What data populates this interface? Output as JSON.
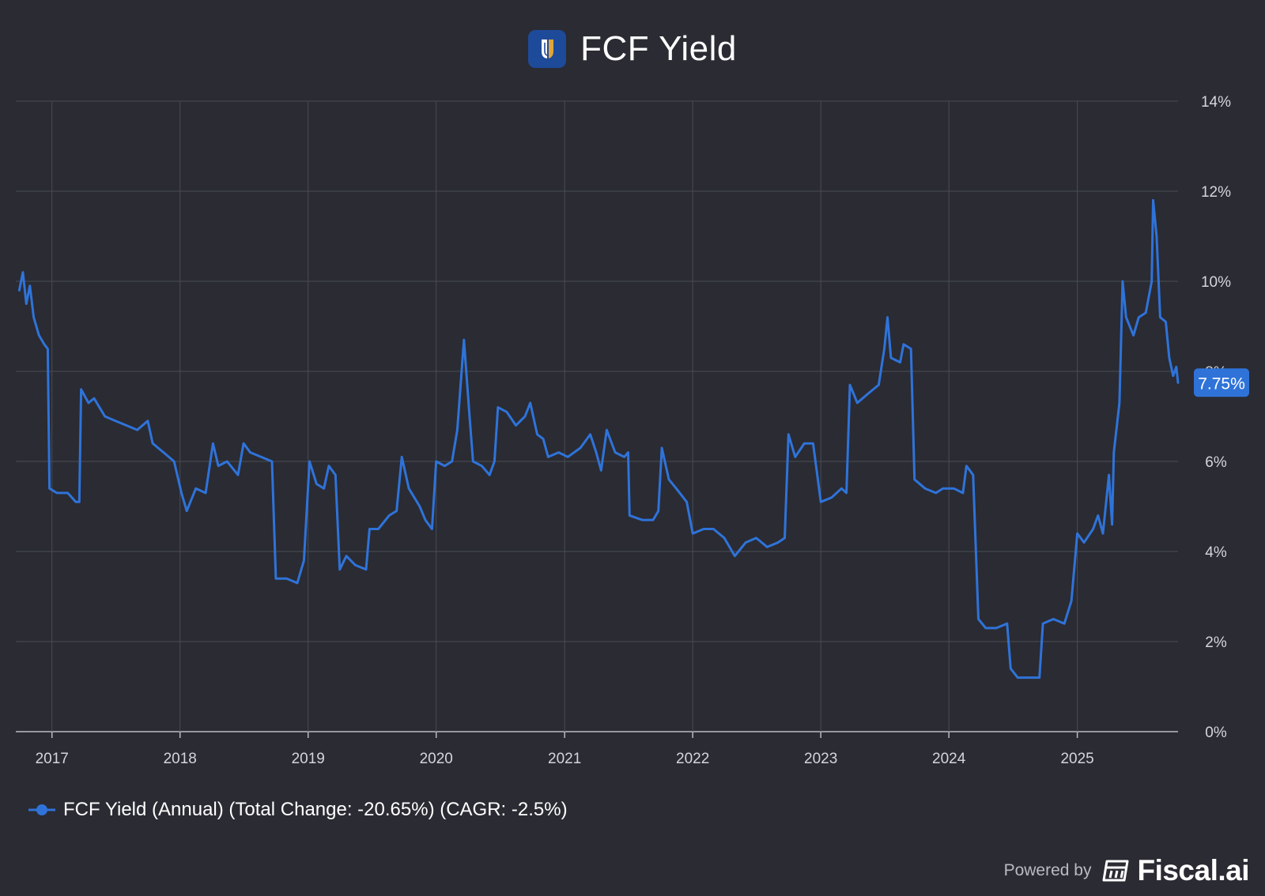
{
  "header": {
    "title": "FCF Yield"
  },
  "legend": {
    "label": "FCF Yield (Annual) (Total Change: -20.65%) (CAGR: -2.5%)"
  },
  "footer": {
    "powered_by": "Powered by",
    "brand": "Fiscal.ai"
  },
  "colors": {
    "background": "#2a2b33",
    "grid": "#4a4c56",
    "line": "#2f73d9",
    "badge": "#2f73d9"
  },
  "chart_data": {
    "type": "line",
    "title": "FCF Yield",
    "xlabel": "",
    "ylabel": "",
    "x_range": [
      "2016-09-20",
      "2025-10-15"
    ],
    "ylim": [
      0,
      14
    ],
    "y_ticks": [
      0,
      2,
      4,
      6,
      8,
      10,
      12,
      14
    ],
    "y_tick_labels": [
      "0%",
      "2%",
      "4%",
      "6%",
      "8%",
      "10%",
      "12%",
      "14%"
    ],
    "x_ticks": [
      "2017-01-01",
      "2018-01-01",
      "2019-01-01",
      "2020-01-01",
      "2021-01-01",
      "2022-01-01",
      "2023-01-01",
      "2024-01-01",
      "2025-01-01"
    ],
    "x_tick_labels": [
      "2017",
      "2018",
      "2019",
      "2020",
      "2021",
      "2022",
      "2023",
      "2024",
      "2025"
    ],
    "grid": true,
    "legend_position": "bottom-left",
    "last_value_label": "7.75%",
    "series": [
      {
        "name": "FCF Yield (Annual) (Total Change: -20.65%) (CAGR: -2.5%)",
        "points": [
          [
            "2016-09-30",
            9.8
          ],
          [
            "2016-10-10",
            10.2
          ],
          [
            "2016-10-20",
            9.5
          ],
          [
            "2016-10-30",
            9.9
          ],
          [
            "2016-11-10",
            9.2
          ],
          [
            "2016-11-25",
            8.8
          ],
          [
            "2016-12-10",
            8.6
          ],
          [
            "2016-12-20",
            8.5
          ],
          [
            "2016-12-25",
            5.4
          ],
          [
            "2017-01-15",
            5.3
          ],
          [
            "2017-02-15",
            5.3
          ],
          [
            "2017-03-10",
            5.1
          ],
          [
            "2017-03-20",
            5.1
          ],
          [
            "2017-03-25",
            7.6
          ],
          [
            "2017-04-15",
            7.3
          ],
          [
            "2017-05-01",
            7.4
          ],
          [
            "2017-06-01",
            7.0
          ],
          [
            "2017-07-01",
            6.9
          ],
          [
            "2017-08-01",
            6.8
          ],
          [
            "2017-09-01",
            6.7
          ],
          [
            "2017-10-01",
            6.9
          ],
          [
            "2017-10-15",
            6.4
          ],
          [
            "2017-11-15",
            6.2
          ],
          [
            "2017-12-15",
            6.0
          ],
          [
            "2018-01-05",
            5.3
          ],
          [
            "2018-01-20",
            4.9
          ],
          [
            "2018-02-15",
            5.4
          ],
          [
            "2018-03-15",
            5.3
          ],
          [
            "2018-04-05",
            6.4
          ],
          [
            "2018-04-20",
            5.9
          ],
          [
            "2018-05-15",
            6.0
          ],
          [
            "2018-06-15",
            5.7
          ],
          [
            "2018-07-01",
            6.4
          ],
          [
            "2018-07-20",
            6.2
          ],
          [
            "2018-08-20",
            6.1
          ],
          [
            "2018-09-20",
            6.0
          ],
          [
            "2018-10-01",
            3.4
          ],
          [
            "2018-11-01",
            3.4
          ],
          [
            "2018-12-01",
            3.3
          ],
          [
            "2018-12-20",
            3.8
          ],
          [
            "2019-01-05",
            6.0
          ],
          [
            "2019-01-25",
            5.5
          ],
          [
            "2019-02-15",
            5.4
          ],
          [
            "2019-03-01",
            5.9
          ],
          [
            "2019-03-20",
            5.7
          ],
          [
            "2019-04-01",
            3.6
          ],
          [
            "2019-04-20",
            3.9
          ],
          [
            "2019-05-15",
            3.7
          ],
          [
            "2019-06-15",
            3.6
          ],
          [
            "2019-06-25",
            4.5
          ],
          [
            "2019-07-20",
            4.5
          ],
          [
            "2019-08-20",
            4.8
          ],
          [
            "2019-09-10",
            4.9
          ],
          [
            "2019-09-25",
            6.1
          ],
          [
            "2019-10-15",
            5.4
          ],
          [
            "2019-11-15",
            5.0
          ],
          [
            "2019-12-01",
            4.7
          ],
          [
            "2019-12-20",
            4.5
          ],
          [
            "2020-01-01",
            6.0
          ],
          [
            "2020-01-25",
            5.9
          ],
          [
            "2020-02-15",
            6.0
          ],
          [
            "2020-03-01",
            6.7
          ],
          [
            "2020-03-20",
            8.7
          ],
          [
            "2020-04-05",
            7.0
          ],
          [
            "2020-04-15",
            6.0
          ],
          [
            "2020-05-10",
            5.9
          ],
          [
            "2020-06-01",
            5.7
          ],
          [
            "2020-06-15",
            6.0
          ],
          [
            "2020-06-25",
            7.2
          ],
          [
            "2020-07-20",
            7.1
          ],
          [
            "2020-08-15",
            6.8
          ],
          [
            "2020-09-10",
            7.0
          ],
          [
            "2020-09-25",
            7.3
          ],
          [
            "2020-10-15",
            6.6
          ],
          [
            "2020-11-01",
            6.5
          ],
          [
            "2020-11-15",
            6.1
          ],
          [
            "2020-12-15",
            6.2
          ],
          [
            "2021-01-10",
            6.1
          ],
          [
            "2021-02-15",
            6.3
          ],
          [
            "2021-03-15",
            6.6
          ],
          [
            "2021-04-01",
            6.2
          ],
          [
            "2021-04-15",
            5.8
          ],
          [
            "2021-05-01",
            6.7
          ],
          [
            "2021-05-25",
            6.2
          ],
          [
            "2021-06-20",
            6.1
          ],
          [
            "2021-07-01",
            6.2
          ],
          [
            "2021-07-05",
            4.8
          ],
          [
            "2021-08-10",
            4.7
          ],
          [
            "2021-09-10",
            4.7
          ],
          [
            "2021-09-25",
            4.9
          ],
          [
            "2021-10-05",
            6.3
          ],
          [
            "2021-10-25",
            5.6
          ],
          [
            "2021-11-15",
            5.4
          ],
          [
            "2021-12-15",
            5.1
          ],
          [
            "2022-01-01",
            4.4
          ],
          [
            "2022-02-01",
            4.5
          ],
          [
            "2022-03-01",
            4.5
          ],
          [
            "2022-04-01",
            4.3
          ],
          [
            "2022-05-01",
            3.9
          ],
          [
            "2022-06-01",
            4.2
          ],
          [
            "2022-07-01",
            4.3
          ],
          [
            "2022-08-01",
            4.1
          ],
          [
            "2022-09-01",
            4.2
          ],
          [
            "2022-09-20",
            4.3
          ],
          [
            "2022-10-01",
            6.6
          ],
          [
            "2022-10-20",
            6.1
          ],
          [
            "2022-11-15",
            6.4
          ],
          [
            "2022-12-10",
            6.4
          ],
          [
            "2023-01-01",
            5.1
          ],
          [
            "2023-02-01",
            5.2
          ],
          [
            "2023-03-01",
            5.4
          ],
          [
            "2023-03-15",
            5.3
          ],
          [
            "2023-03-25",
            7.7
          ],
          [
            "2023-04-15",
            7.3
          ],
          [
            "2023-05-15",
            7.5
          ],
          [
            "2023-06-15",
            7.7
          ],
          [
            "2023-07-01",
            8.5
          ],
          [
            "2023-07-10",
            9.2
          ],
          [
            "2023-07-20",
            8.3
          ],
          [
            "2023-08-15",
            8.2
          ],
          [
            "2023-08-25",
            8.6
          ],
          [
            "2023-09-15",
            8.5
          ],
          [
            "2023-09-25",
            5.6
          ],
          [
            "2023-10-25",
            5.4
          ],
          [
            "2023-11-25",
            5.3
          ],
          [
            "2023-12-15",
            5.4
          ],
          [
            "2024-01-15",
            5.4
          ],
          [
            "2024-02-10",
            5.3
          ],
          [
            "2024-02-20",
            5.9
          ],
          [
            "2024-03-10",
            5.7
          ],
          [
            "2024-03-25",
            2.5
          ],
          [
            "2024-04-15",
            2.3
          ],
          [
            "2024-05-15",
            2.3
          ],
          [
            "2024-06-15",
            2.4
          ],
          [
            "2024-06-25",
            1.4
          ],
          [
            "2024-07-15",
            1.2
          ],
          [
            "2024-08-15",
            1.2
          ],
          [
            "2024-09-15",
            1.2
          ],
          [
            "2024-09-25",
            2.4
          ],
          [
            "2024-10-25",
            2.5
          ],
          [
            "2024-11-25",
            2.4
          ],
          [
            "2024-12-15",
            2.9
          ],
          [
            "2025-01-01",
            4.4
          ],
          [
            "2025-01-20",
            4.2
          ],
          [
            "2025-02-15",
            4.5
          ],
          [
            "2025-03-01",
            4.8
          ],
          [
            "2025-03-15",
            4.4
          ],
          [
            "2025-04-01",
            5.7
          ],
          [
            "2025-04-10",
            4.6
          ],
          [
            "2025-04-15",
            6.2
          ],
          [
            "2025-05-01",
            7.3
          ],
          [
            "2025-05-10",
            10.0
          ],
          [
            "2025-05-20",
            9.2
          ],
          [
            "2025-06-10",
            8.8
          ],
          [
            "2025-06-25",
            9.2
          ],
          [
            "2025-07-15",
            9.3
          ],
          [
            "2025-08-01",
            10.0
          ],
          [
            "2025-08-05",
            11.8
          ],
          [
            "2025-08-15",
            11.0
          ],
          [
            "2025-08-25",
            9.2
          ],
          [
            "2025-09-10",
            9.1
          ],
          [
            "2025-09-20",
            8.3
          ],
          [
            "2025-10-01",
            7.9
          ],
          [
            "2025-10-10",
            8.1
          ],
          [
            "2025-10-15",
            7.75
          ]
        ]
      }
    ]
  }
}
